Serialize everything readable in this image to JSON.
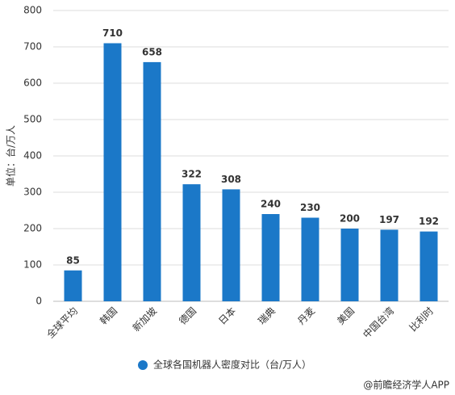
{
  "chart_data": {
    "type": "bar",
    "y_label": "单位：台/万人",
    "categories": [
      "全球平均",
      "韩国",
      "新加坡",
      "德国",
      "日本",
      "瑞典",
      "丹麦",
      "美国",
      "中国台湾",
      "比利时"
    ],
    "series": [
      {
        "name": "全球各国机器人密度对比（台/万人）",
        "color": "#1b78c8",
        "values": [
          85,
          710,
          658,
          322,
          308,
          240,
          230,
          200,
          197,
          192
        ]
      }
    ],
    "ylim": [
      0,
      800
    ],
    "yticks": [
      0,
      100,
      200,
      300,
      400,
      500,
      600,
      700,
      800
    ],
    "grid": true,
    "legend": "bottom",
    "source": "@前瞻经济学人APP"
  }
}
